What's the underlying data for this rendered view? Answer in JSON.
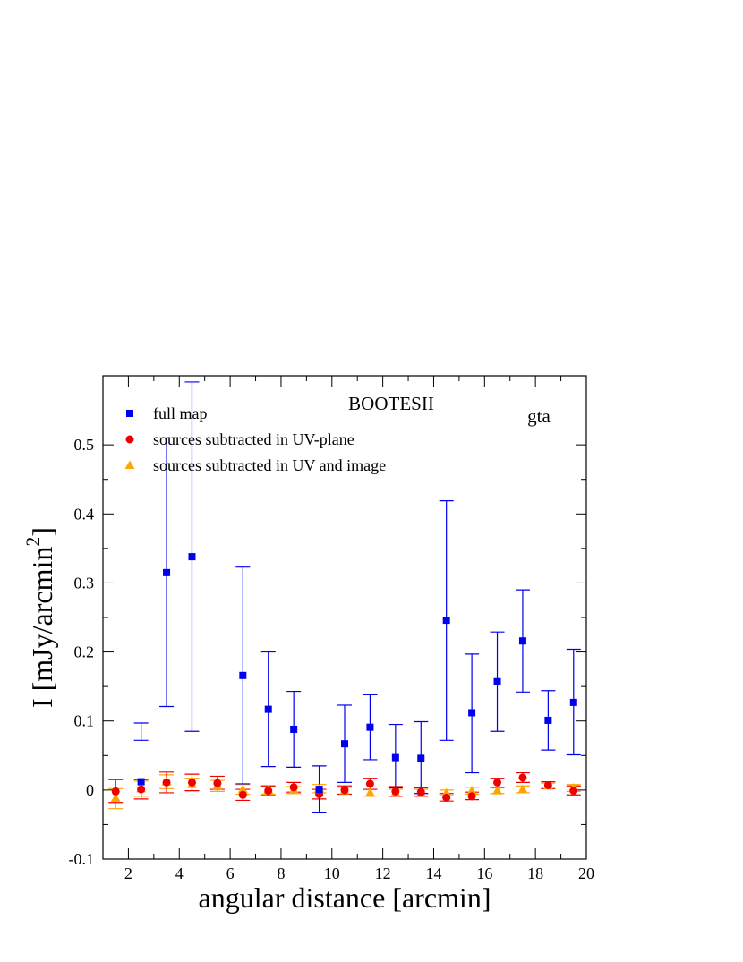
{
  "chart_data": {
    "type": "scatter",
    "title": "BOOTESII",
    "annotation": "gta",
    "xlabel": "angular distance [arcmin]",
    "ylabel": "I [mJy/arcmin",
    "ylabel_sup": "2",
    "ylabel_tail": "]",
    "xlim": [
      1,
      20
    ],
    "ylim": [
      -0.1,
      0.6
    ],
    "xticks": [
      2,
      4,
      6,
      8,
      10,
      12,
      14,
      16,
      18,
      20
    ],
    "xtick_labels": [
      "2",
      "4",
      "6",
      "8",
      "10",
      "12",
      "14",
      "16",
      "18",
      "20"
    ],
    "yticks": [
      -0.1,
      0,
      0.1,
      0.2,
      0.3,
      0.4,
      0.5
    ],
    "ytick_labels": [
      "-0.1",
      "0",
      "0.1",
      "0.2",
      "0.3",
      "0.4",
      "0.5"
    ],
    "grid": false,
    "legend_position": "top-left",
    "series": [
      {
        "name": "full map",
        "marker": "square",
        "color": "#0000ee",
        "x": [
          2.5,
          3.5,
          4.5,
          6.5,
          7.5,
          8.5,
          9.5,
          10.5,
          11.5,
          12.5,
          13.5,
          14.5,
          15.5,
          16.5,
          17.5,
          18.5,
          19.5
        ],
        "y": [
          0.012,
          0.315,
          0.338,
          0.166,
          0.117,
          0.088,
          0.001,
          0.067,
          0.091,
          0.047,
          0.046,
          0.246,
          0.112,
          0.157,
          0.216,
          0.101,
          0.127
        ],
        "yerr_low": [
          0.072,
          0.121,
          0.085,
          0.009,
          0.034,
          0.033,
          -0.032,
          0.011,
          0.044,
          0.003,
          -0.005,
          0.072,
          0.025,
          0.085,
          0.142,
          0.058,
          0.051
        ],
        "yerr_high": [
          0.097,
          0.51,
          0.591,
          0.323,
          0.2,
          0.143,
          0.035,
          0.123,
          0.138,
          0.095,
          0.099,
          0.419,
          0.197,
          0.229,
          0.29,
          0.144,
          0.204
        ]
      },
      {
        "name": "sources subtracted in UV-plane",
        "marker": "circle",
        "color": "#ee0000",
        "x": [
          1.5,
          2.5,
          3.5,
          4.5,
          5.5,
          6.5,
          7.5,
          8.5,
          9.5,
          10.5,
          11.5,
          12.5,
          13.5,
          14.5,
          15.5,
          16.5,
          17.5,
          18.5,
          19.5
        ],
        "y": [
          -0.002,
          0.001,
          0.011,
          0.011,
          0.01,
          -0.007,
          -0.001,
          0.004,
          -0.006,
          0.0,
          0.009,
          -0.002,
          -0.003,
          -0.011,
          -0.009,
          0.011,
          0.018,
          0.007,
          -0.001
        ],
        "yerr_low": [
          -0.018,
          -0.013,
          -0.004,
          -0.001,
          0.001,
          -0.015,
          -0.008,
          -0.003,
          -0.013,
          -0.006,
          0.001,
          -0.009,
          -0.009,
          -0.016,
          -0.014,
          0.004,
          0.011,
          0.002,
          -0.007
        ],
        "yerr_high": [
          0.015,
          0.015,
          0.026,
          0.023,
          0.02,
          0.001,
          0.006,
          0.011,
          0.001,
          0.006,
          0.017,
          0.005,
          0.003,
          -0.005,
          -0.003,
          0.017,
          0.025,
          0.012,
          0.006
        ]
      },
      {
        "name": "sources subtracted in UV and image",
        "marker": "triangle",
        "color": "#ffa500",
        "x": [
          1.5,
          2.5,
          3.5,
          4.5,
          5.5,
          6.5,
          7.5,
          8.5,
          9.5,
          10.5,
          11.5,
          12.5,
          13.5,
          14.5,
          15.5,
          16.5,
          17.5,
          18.5,
          19.5
        ],
        "y": [
          -0.012,
          0.002,
          0.012,
          0.008,
          0.006,
          0.001,
          0.0,
          0.0,
          0.002,
          -0.001,
          -0.004,
          -0.004,
          -0.004,
          -0.004,
          -0.001,
          -0.001,
          0.001,
          0.006,
          0.003
        ],
        "yerr_low": [
          -0.027,
          -0.009,
          0.002,
          -0.001,
          -0.002,
          -0.006,
          -0.006,
          -0.005,
          -0.004,
          -0.006,
          -0.009,
          -0.009,
          -0.009,
          -0.008,
          -0.006,
          -0.005,
          -0.004,
          0.002,
          -0.002
        ],
        "yerr_high": [
          0.002,
          0.013,
          0.022,
          0.017,
          0.014,
          0.008,
          0.006,
          0.005,
          0.008,
          0.004,
          0.001,
          0.001,
          0.001,
          0.0,
          0.004,
          0.003,
          0.006,
          0.01,
          0.008
        ]
      }
    ]
  }
}
